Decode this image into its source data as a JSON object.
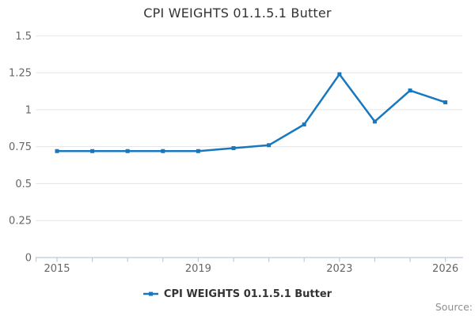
{
  "chart_data": {
    "type": "line",
    "title": "CPI WEIGHTS 01.1.5.1 Butter",
    "x": [
      2015,
      2016,
      2017,
      2018,
      2019,
      2020,
      2021,
      2022,
      2023,
      2024,
      2025,
      2026
    ],
    "series": [
      {
        "name": "CPI WEIGHTS 01.1.5.1 Butter",
        "values": [
          0.72,
          0.72,
          0.72,
          0.72,
          0.72,
          0.74,
          0.76,
          0.9,
          1.24,
          0.92,
          1.13,
          1.05
        ]
      }
    ],
    "xlabel": "",
    "ylabel": "",
    "ylim": [
      0,
      1.5
    ],
    "yticks": [
      0,
      0.25,
      0.5,
      0.75,
      1,
      1.25,
      1.5
    ],
    "ytick_labels": [
      "0",
      "0.25",
      "0.5",
      "0.75",
      "1",
      "1.25",
      "1.5"
    ],
    "xtick_years_with_marks": [
      2015,
      2016,
      2017,
      2018,
      2019,
      2020,
      2021,
      2022,
      2023,
      2024,
      2025,
      2026
    ],
    "xtick_labels": [
      {
        "x": 2015,
        "label": "2015"
      },
      {
        "x": 2019,
        "label": "2019"
      },
      {
        "x": 2023,
        "label": "2023"
      },
      {
        "x": 2026,
        "label": "2026"
      }
    ],
    "grid": "horizontal",
    "legend_position": "bottom-center"
  },
  "legend": {
    "label": "CPI WEIGHTS 01.1.5.1 Butter"
  },
  "source_label": "Source:",
  "colors": {
    "line": "#1878bf",
    "grid": "#e5e5e5",
    "axis": "#bccbdb",
    "tick_text": "#666666",
    "title_text": "#333333",
    "legend_text": "#333333",
    "source_text": "#8f8f8f",
    "background": "#ffffff"
  }
}
